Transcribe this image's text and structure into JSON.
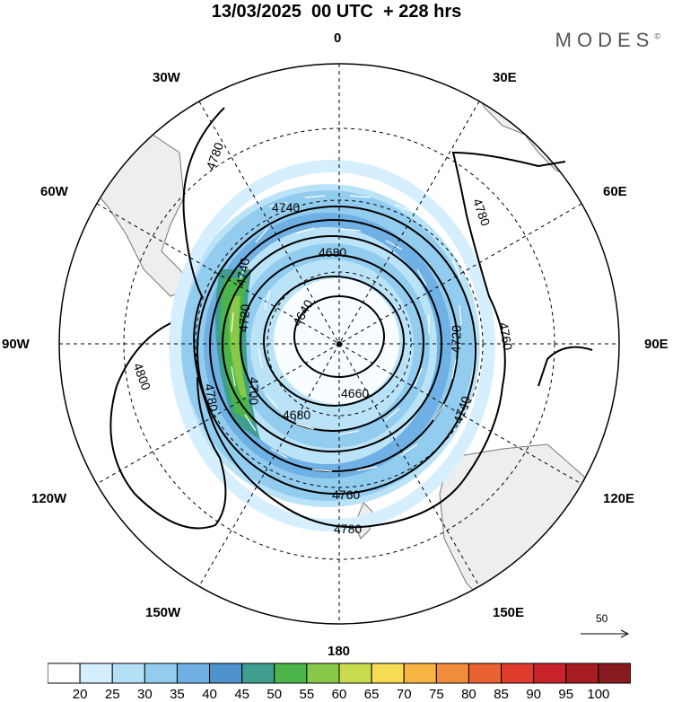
{
  "title": "13/03/2025  00 UTC  + 228 hrs",
  "brand": "MODES",
  "brand_mark": "©",
  "longitude_labels": {
    "n0": "0",
    "w30": "30W",
    "e30": "30E",
    "w60": "60W",
    "e60": "60E",
    "w90": "90W",
    "e90": "90E",
    "w120": "120W",
    "e120": "120E",
    "w150": "150W",
    "e150": "150E",
    "s180": "180"
  },
  "contour_labels": [
    "4640",
    "4660",
    "4680",
    "4720",
    "4740",
    "4760",
    "4780",
    "4800"
  ],
  "contour_label_instances": [
    {
      "text": "4780",
      "pos": "upper-left"
    },
    {
      "text": "4740",
      "pos": "upper"
    },
    {
      "text": "4780",
      "pos": "upper-right"
    },
    {
      "text": "4680",
      "pos": "upper-center"
    },
    {
      "text": "4740",
      "pos": "left-a"
    },
    {
      "text": "4640",
      "pos": "center-left"
    },
    {
      "text": "4720",
      "pos": "left-b"
    },
    {
      "text": "4760",
      "pos": "right"
    },
    {
      "text": "4720",
      "pos": "right-inner"
    },
    {
      "text": "4800",
      "pos": "lower-left"
    },
    {
      "text": "4780",
      "pos": "left-lower"
    },
    {
      "text": "4700",
      "pos": "left-lower-b"
    },
    {
      "text": "4660",
      "pos": "lower-center"
    },
    {
      "text": "4680",
      "pos": "lower-center-b"
    },
    {
      "text": "4740",
      "pos": "lower-right"
    },
    {
      "text": "4760",
      "pos": "bottom"
    },
    {
      "text": "4780",
      "pos": "bottom-b"
    }
  ],
  "vector_reference": "50",
  "colorbar": {
    "ticks": [
      "20",
      "25",
      "30",
      "35",
      "40",
      "45",
      "50",
      "55",
      "60",
      "65",
      "70",
      "75",
      "80",
      "85",
      "90",
      "95",
      "100"
    ],
    "colors": [
      "#ffffff",
      "#d6efff",
      "#b4e0f7",
      "#92ccef",
      "#6fb1e4",
      "#4f93cc",
      "#3f9e8f",
      "#4cb54a",
      "#88c94a",
      "#c9dc4e",
      "#f6dc55",
      "#f7b443",
      "#f18c3a",
      "#eb6232",
      "#df3a2c",
      "#c8222a",
      "#a81d22",
      "#861a1e"
    ]
  }
}
